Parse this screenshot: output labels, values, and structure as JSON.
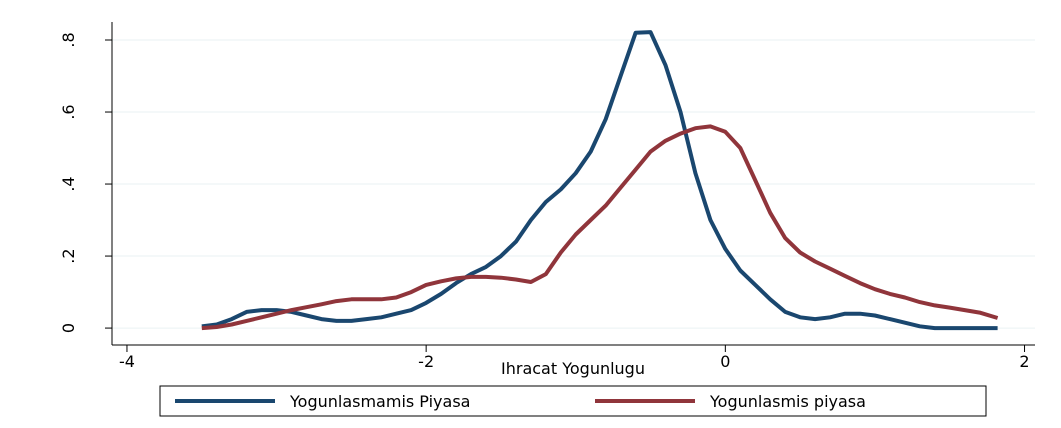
{
  "chart_data": {
    "type": "line",
    "x_label": "Ihracat Yogunlugu",
    "x": [
      -3.5,
      -3.4,
      -3.3,
      -3.2,
      -3.1,
      -3.0,
      -2.9,
      -2.8,
      -2.7,
      -2.6,
      -2.5,
      -2.4,
      -2.3,
      -2.2,
      -2.1,
      -2.0,
      -1.9,
      -1.8,
      -1.7,
      -1.6,
      -1.5,
      -1.4,
      -1.3,
      -1.2,
      -1.1,
      -1.0,
      -0.9,
      -0.8,
      -0.7,
      -0.6,
      -0.5,
      -0.4,
      -0.3,
      -0.2,
      -0.1,
      0,
      0.1,
      0.2,
      0.3,
      0.4,
      0.5,
      0.6,
      0.7,
      0.8,
      0.9,
      1.0,
      1.1,
      1.2,
      1.3,
      1.4,
      1.5,
      1.6,
      1.7,
      1.82
    ],
    "series": [
      {
        "name": "Yogunlasmamis Piyasa",
        "color": "#1a476f",
        "values": [
          0.005,
          0.01,
          0.025,
          0.045,
          0.05,
          0.05,
          0.045,
          0.035,
          0.025,
          0.02,
          0.02,
          0.025,
          0.03,
          0.04,
          0.05,
          0.07,
          0.095,
          0.125,
          0.15,
          0.17,
          0.2,
          0.24,
          0.3,
          0.35,
          0.385,
          0.43,
          0.49,
          0.58,
          0.7,
          0.82,
          0.822,
          0.73,
          0.6,
          0.43,
          0.3,
          0.22,
          0.16,
          0.12,
          0.08,
          0.045,
          0.03,
          0.025,
          0.03,
          0.04,
          0.04,
          0.035,
          0.025,
          0.015,
          0.005,
          0,
          0,
          0,
          0,
          0
        ]
      },
      {
        "name": "Yogunlasmis piyasa",
        "color": "#90353b",
        "values": [
          0,
          0.003,
          0.01,
          0.02,
          0.03,
          0.04,
          0.05,
          0.058,
          0.066,
          0.075,
          0.08,
          0.08,
          0.08,
          0.085,
          0.1,
          0.12,
          0.13,
          0.138,
          0.142,
          0.142,
          0.14,
          0.135,
          0.128,
          0.15,
          0.21,
          0.26,
          0.3,
          0.34,
          0.39,
          0.44,
          0.49,
          0.52,
          0.54,
          0.555,
          0.56,
          0.545,
          0.5,
          0.41,
          0.32,
          0.25,
          0.21,
          0.185,
          0.165,
          0.145,
          0.125,
          0.108,
          0.095,
          0.085,
          0.072,
          0.063,
          0.057,
          0.05,
          0.043,
          0.028
        ]
      }
    ],
    "xlim": [
      -4.1,
      2.07
    ],
    "ylim": [
      -0.047,
      0.85
    ],
    "xticks": [
      -4,
      -2,
      0,
      2
    ],
    "yticks": [
      0,
      {
        "value": 0.2,
        "label": ".2"
      },
      {
        "value": 0.4,
        "label": ".4"
      },
      {
        "value": 0.6,
        "label": ".6"
      },
      {
        "value": 0.8,
        "label": ".8"
      }
    ],
    "grid": true,
    "legend": "bottom"
  }
}
